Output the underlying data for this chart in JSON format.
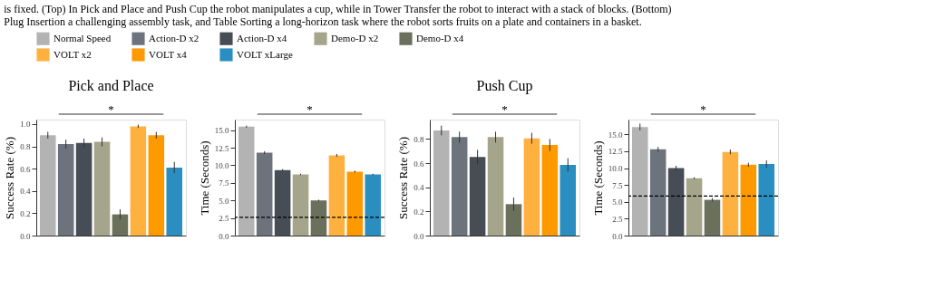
{
  "chart_data": [
    {
      "type": "bar",
      "title": "Pick and Place",
      "ylabel": "Success Rate (%)",
      "categories": [
        null
      ],
      "legend": "top",
      "grid": false,
      "tick_labels": "y",
      "annotations": [
        "is fixed. (Top) In Pick and Place and Push Cup the robot manipulates a cup, while in Tower Transfer the robot to interact with a stack of blocks. (Bottom)",
        "Plug Insertion a challenging assembly task, and Table Sorting a long-horizon task where the robot sorts fruits on a plate and containers in a basket.",
        "*"
      ],
      "ylim": [
        0,
        1.04
      ],
      "yticks": [
        {
          "value": 0,
          "label": "0.0"
        },
        0.2,
        0.4,
        0.6,
        0.8,
        {
          "value": 1,
          "label": "1.0"
        }
      ],
      "series": [
        {
          "name": "Normal Speed",
          "color": "#b3b3b3",
          "values": [
            0.9
          ],
          "errors": [
            0.03
          ]
        },
        {
          "name": "Action-D x2",
          "color": "#6c737c",
          "values": [
            0.82
          ],
          "errors": [
            0.04
          ]
        },
        {
          "name": "Action-D x4",
          "color": "#474d55",
          "values": [
            0.83
          ],
          "errors": [
            0.04
          ]
        },
        {
          "name": "Demo-D x2",
          "color": "#a5a58c",
          "values": [
            0.84
          ],
          "errors": [
            0.04
          ]
        },
        {
          "name": "Demo-D x4",
          "color": "#6a705b",
          "values": [
            0.19
          ],
          "errors": [
            0.045
          ]
        },
        {
          "name": "VOLT x2",
          "color": "#ffb140",
          "values": [
            0.98
          ],
          "errors": [
            0.015
          ]
        },
        {
          "name": "VOLT x4",
          "color": "#ff9900",
          "values": [
            0.9
          ],
          "errors": [
            0.03
          ]
        },
        {
          "name": "VOLT xLarge",
          "color": "#2a8fc0",
          "values": [
            0.61
          ],
          "errors": [
            0.05
          ]
        }
      ]
    },
    {
      "type": "bar",
      "ylabel": "Time (Seconds)",
      "categories": [
        null
      ],
      "legend": "top",
      "grid": false,
      "tick_labels": "y",
      "annotations": [
        "*"
      ],
      "ylim": [
        0,
        16.5
      ],
      "yticks": [
        {
          "value": 0,
          "label": "0.0"
        },
        2.5,
        {
          "value": 5,
          "label": "5.0"
        },
        7.5,
        {
          "value": 10,
          "label": "10.0"
        },
        12.5,
        {
          "value": 15,
          "label": "15.0"
        }
      ],
      "ref_lines": [
        {
          "axis": "y",
          "value": 2.6,
          "color": "#000000",
          "line_style": "dashed"
        }
      ],
      "series": [
        {
          "name": "Normal Speed",
          "color": "#b3b3b3",
          "values": [
            15.5
          ],
          "errors": [
            0.15
          ]
        },
        {
          "name": "Action-D x2",
          "color": "#6c737c",
          "values": [
            11.8
          ],
          "errors": [
            0.2
          ]
        },
        {
          "name": "Action-D x4",
          "color": "#474d55",
          "values": [
            9.3
          ],
          "errors": [
            0.15
          ]
        },
        {
          "name": "Demo-D x2",
          "color": "#a5a58c",
          "values": [
            8.7
          ],
          "errors": [
            0.1
          ]
        },
        {
          "name": "Demo-D x4",
          "color": "#6a705b",
          "values": [
            5.0
          ],
          "errors": [
            0.1
          ]
        },
        {
          "name": "VOLT x2",
          "color": "#ffb140",
          "values": [
            11.4
          ],
          "errors": [
            0.2
          ]
        },
        {
          "name": "VOLT x4",
          "color": "#ff9900",
          "values": [
            9.1
          ],
          "errors": [
            0.15
          ]
        },
        {
          "name": "VOLT xLarge",
          "color": "#2a8fc0",
          "values": [
            8.7
          ],
          "errors": [
            0.1
          ]
        }
      ]
    },
    {
      "type": "bar",
      "title": "Push Cup",
      "ylabel": "Success Rate (%)",
      "categories": [
        null
      ],
      "legend": "top",
      "grid": false,
      "tick_labels": "y",
      "annotations": [
        "*"
      ],
      "ylim": [
        0,
        0.96
      ],
      "yticks": [
        {
          "value": 0,
          "label": "0.0"
        },
        0.2,
        0.4,
        0.6,
        0.8
      ],
      "series": [
        {
          "name": "Normal Speed",
          "color": "#b3b3b3",
          "values": [
            0.87
          ],
          "errors": [
            0.04
          ]
        },
        {
          "name": "Action-D x2",
          "color": "#6c737c",
          "values": [
            0.815
          ],
          "errors": [
            0.045
          ]
        },
        {
          "name": "Action-D x4",
          "color": "#474d55",
          "values": [
            0.65
          ],
          "errors": [
            0.06
          ]
        },
        {
          "name": "Demo-D x2",
          "color": "#a5a58c",
          "values": [
            0.815
          ],
          "errors": [
            0.045
          ]
        },
        {
          "name": "Demo-D x4",
          "color": "#6a705b",
          "values": [
            0.26
          ],
          "errors": [
            0.055
          ]
        },
        {
          "name": "VOLT x2",
          "color": "#ffb140",
          "values": [
            0.805
          ],
          "errors": [
            0.045
          ]
        },
        {
          "name": "VOLT x4",
          "color": "#ff9900",
          "values": [
            0.75
          ],
          "errors": [
            0.05
          ]
        },
        {
          "name": "VOLT xLarge",
          "color": "#2a8fc0",
          "values": [
            0.585
          ],
          "errors": [
            0.055
          ]
        }
      ]
    },
    {
      "type": "bar",
      "ylabel": "Time (Seconds)",
      "categories": [
        null
      ],
      "legend": "top",
      "grid": false,
      "tick_labels": "y",
      "annotations": [
        "*"
      ],
      "ylim": [
        0,
        17.2
      ],
      "yticks": [
        {
          "value": 0,
          "label": "0.0"
        },
        2.5,
        {
          "value": 5,
          "label": "5.0"
        },
        7.5,
        {
          "value": 10,
          "label": "10.0"
        },
        12.5,
        {
          "value": 15,
          "label": "15.0"
        }
      ],
      "ref_lines": [
        {
          "axis": "y",
          "value": 5.85,
          "color": "#000000",
          "line_style": "dashed"
        }
      ],
      "series": [
        {
          "name": "Normal Speed",
          "color": "#b3b3b3",
          "values": [
            16.1
          ],
          "errors": [
            0.5
          ]
        },
        {
          "name": "Action-D x2",
          "color": "#6c737c",
          "values": [
            12.8
          ],
          "errors": [
            0.35
          ]
        },
        {
          "name": "Action-D x4",
          "color": "#474d55",
          "values": [
            10.0
          ],
          "errors": [
            0.35
          ]
        },
        {
          "name": "Demo-D x2",
          "color": "#a5a58c",
          "values": [
            8.5
          ],
          "errors": [
            0.15
          ]
        },
        {
          "name": "Demo-D x4",
          "color": "#6a705b",
          "values": [
            5.3
          ],
          "errors": [
            0.25
          ]
        },
        {
          "name": "VOLT x2",
          "color": "#ffb140",
          "values": [
            12.4
          ],
          "errors": [
            0.35
          ]
        },
        {
          "name": "VOLT x4",
          "color": "#ff9900",
          "values": [
            10.5
          ],
          "errors": [
            0.3
          ]
        },
        {
          "name": "VOLT xLarge",
          "color": "#2a8fc0",
          "values": [
            10.6
          ],
          "errors": [
            0.55
          ]
        }
      ]
    }
  ]
}
